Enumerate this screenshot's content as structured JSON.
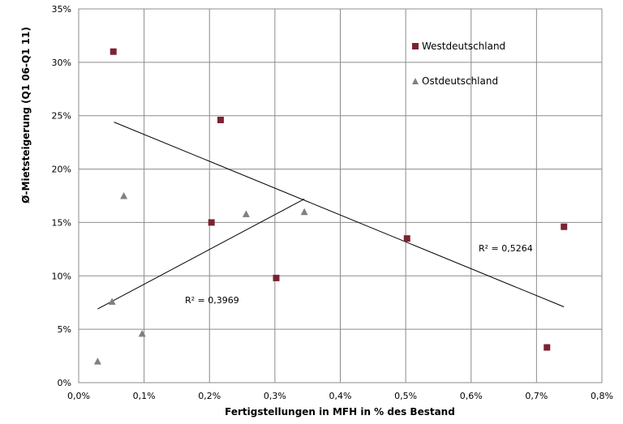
{
  "chart_data": {
    "type": "scatter",
    "title": "",
    "xlabel": "Fertigstellungen in MFH in % des Bestand",
    "ylabel": "Ø-Mietsteigerung (Q1 06-Q1 11)",
    "xlim": [
      0,
      0.8
    ],
    "ylim": [
      0,
      35
    ],
    "x_ticks": [
      0,
      0.1,
      0.2,
      0.3,
      0.4,
      0.5,
      0.6,
      0.7,
      0.8
    ],
    "x_tick_labels": [
      "0,0%",
      "0,1%",
      "0,2%",
      "0,3%",
      "0,4%",
      "0,5%",
      "0,6%",
      "0,7%",
      "0,8%"
    ],
    "y_ticks": [
      0,
      5,
      10,
      15,
      20,
      25,
      30,
      35
    ],
    "y_tick_labels": [
      "0%",
      "5%",
      "10%",
      "15%",
      "20%",
      "25%",
      "30%",
      "35%"
    ],
    "grid": true,
    "legend_position": "top-right",
    "series": [
      {
        "name": "Westdeutschland",
        "marker": "square",
        "color": "#7B2330",
        "points": [
          {
            "x": 0.053,
            "y": 31.0
          },
          {
            "x": 0.217,
            "y": 24.6
          },
          {
            "x": 0.203,
            "y": 15.0
          },
          {
            "x": 0.302,
            "y": 9.8
          },
          {
            "x": 0.502,
            "y": 13.5
          },
          {
            "x": 0.716,
            "y": 3.3
          },
          {
            "x": 0.742,
            "y": 14.6
          }
        ],
        "trendline": {
          "x": [
            0.054,
            0.742
          ],
          "y": [
            24.4,
            7.1
          ]
        },
        "r2_label": "R² = 0,5264"
      },
      {
        "name": "Ostdeutschland",
        "marker": "triangle",
        "color": "#808080",
        "points": [
          {
            "x": 0.029,
            "y": 2.0
          },
          {
            "x": 0.051,
            "y": 7.6
          },
          {
            "x": 0.069,
            "y": 17.5
          },
          {
            "x": 0.097,
            "y": 4.6
          },
          {
            "x": 0.256,
            "y": 15.8
          },
          {
            "x": 0.345,
            "y": 16.0
          }
        ],
        "trendline": {
          "x": [
            0.029,
            0.345
          ],
          "y": [
            6.9,
            17.2
          ]
        },
        "r2_label": "R² = 0,3969"
      }
    ]
  }
}
